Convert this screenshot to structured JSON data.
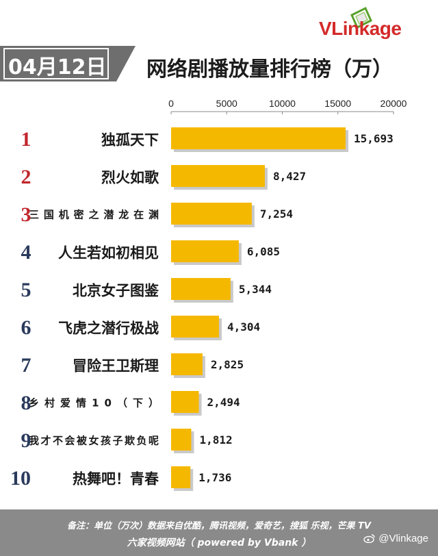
{
  "brand": {
    "logo_text": "VLinkage",
    "logo_accent_color": "#d42a2a",
    "logo_icon": "green-window-icon"
  },
  "header": {
    "date": "04月12日",
    "title": "网络剧播放量排行榜（万）"
  },
  "colors": {
    "bar": "#f5b800",
    "rank_red": "#c0262c",
    "rank_navy": "#2a3a5c",
    "badge": "#6e6e6e"
  },
  "chart_data": {
    "type": "bar",
    "orientation": "horizontal",
    "title": "网络剧播放量排行榜（万）",
    "categories": [
      "独孤天下",
      "烈火如歌",
      "三国机密之潜龙在渊",
      "人生若如初相见",
      "北京女子图鉴",
      "飞虎之潜行极战",
      "冒险王卫斯理",
      "乡村爱情10（下）",
      "我才不会被女孩子欺负呢",
      "热舞吧！青春"
    ],
    "ranks": [
      "1",
      "2",
      "3",
      "4",
      "5",
      "6",
      "7",
      "8",
      "9",
      "10"
    ],
    "values": [
      15693,
      8427,
      7254,
      6085,
      5344,
      4304,
      2825,
      2494,
      1812,
      1736
    ],
    "value_labels": [
      "15,693",
      "8,427",
      "7,254",
      "6,085",
      "5,344",
      "4,304",
      "2,825",
      "2,494",
      "1,812",
      "1,736"
    ],
    "xlim": [
      0,
      20000
    ],
    "ticks": [
      0,
      5000,
      10000,
      15000,
      20000
    ],
    "tick_labels": [
      "0",
      "5000",
      "10000",
      "15000",
      "20000"
    ],
    "axis_position": "top",
    "grid": false,
    "legend": "none"
  },
  "footer": {
    "line1": "备注：单位（万次）数据来自优酷，腾讯视频，爱奇艺，搜狐 乐视，芒果 TV",
    "line2": "六家视频网站（ powered by Vbank ）",
    "watermark": "@Vlinkage"
  }
}
